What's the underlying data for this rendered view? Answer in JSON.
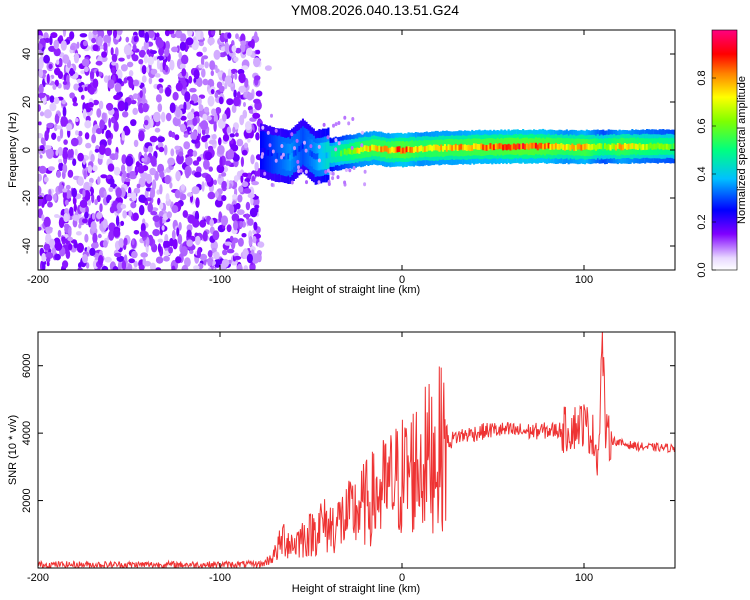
{
  "title": "YM08.2026.040.13.51.G24",
  "chart_data": [
    {
      "type": "heatmap",
      "xlabel": "Height of straight line (km)",
      "ylabel": "Frequency (Hz)",
      "xlim": [
        -200,
        150
      ],
      "ylim": [
        -50,
        50
      ],
      "xticks": [
        -200,
        -100,
        0,
        100
      ],
      "yticks": [
        -40,
        -20,
        0,
        20,
        40
      ],
      "colorbar": {
        "label": "Normalized spectral amplitude",
        "range": [
          0,
          1
        ],
        "ticks": [
          "0.0",
          "0.2",
          "0.4",
          "0.6",
          "0.8"
        ],
        "tick_values": [
          0.0,
          0.2,
          0.4,
          0.6,
          0.8
        ]
      },
      "noise_region_x": [
        -200,
        -78
      ],
      "ridge": {
        "x": [
          -78,
          -70,
          -62,
          -55,
          -48,
          -40,
          -32,
          -24,
          -16,
          -8,
          0,
          10,
          20,
          30,
          40,
          50,
          60,
          70,
          80,
          90,
          100,
          110,
          120,
          130,
          140,
          150
        ],
        "freq": [
          0,
          -2,
          -3,
          2,
          -3,
          -2,
          -1,
          0,
          1,
          0,
          0,
          0.5,
          0.8,
          1,
          1.2,
          1.3,
          1.4,
          1.5,
          1.5,
          1.3,
          1.2,
          1.3,
          1.4,
          1.5,
          1.5,
          1.5
        ],
        "amplitude": [
          0.25,
          0.3,
          0.35,
          0.3,
          0.35,
          0.45,
          0.6,
          0.75,
          0.8,
          0.8,
          0.9,
          0.75,
          0.8,
          0.8,
          0.85,
          0.85,
          0.9,
          0.9,
          0.85,
          0.75,
          0.85,
          0.6,
          0.8,
          0.7,
          0.65,
          0.6
        ]
      }
    },
    {
      "type": "line",
      "xlabel": "Height of straight line (km)",
      "ylabel": "SNR (10 * v/v)",
      "xlim": [
        -200,
        150
      ],
      "ylim": [
        0,
        7000
      ],
      "xticks": [
        -200,
        -100,
        0,
        100
      ],
      "yticks": [
        2000,
        4000,
        6000
      ],
      "color": "#ee3333",
      "series": {
        "name": "SNR",
        "x": [
          -200,
          -150,
          -100,
          -76,
          -70,
          -65,
          -60,
          -55,
          -50,
          -45,
          -40,
          -30,
          -20,
          -10,
          0,
          10,
          20,
          30,
          50,
          70,
          90,
          100,
          105,
          108,
          110,
          112,
          115,
          120,
          130,
          150
        ],
        "y": [
          100,
          100,
          100,
          120,
          400,
          900,
          700,
          900,
          1000,
          1300,
          1200,
          1500,
          1900,
          2300,
          2700,
          3100,
          3500,
          3900,
          4100,
          4050,
          4100,
          4300,
          3900,
          3300,
          6900,
          3900,
          3800,
          3700,
          3600,
          3550
        ]
      }
    }
  ]
}
